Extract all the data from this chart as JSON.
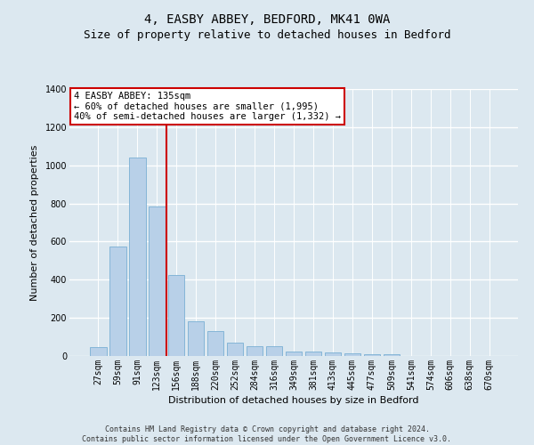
{
  "title": "4, EASBY ABBEY, BEDFORD, MK41 0WA",
  "subtitle": "Size of property relative to detached houses in Bedford",
  "xlabel": "Distribution of detached houses by size in Bedford",
  "ylabel": "Number of detached properties",
  "footer1": "Contains HM Land Registry data © Crown copyright and database right 2024.",
  "footer2": "Contains public sector information licensed under the Open Government Licence v3.0.",
  "categories": [
    "27sqm",
    "59sqm",
    "91sqm",
    "123sqm",
    "156sqm",
    "188sqm",
    "220sqm",
    "252sqm",
    "284sqm",
    "316sqm",
    "349sqm",
    "381sqm",
    "413sqm",
    "445sqm",
    "477sqm",
    "509sqm",
    "541sqm",
    "574sqm",
    "606sqm",
    "638sqm",
    "670sqm"
  ],
  "values": [
    48,
    575,
    1040,
    785,
    425,
    180,
    130,
    70,
    52,
    52,
    25,
    22,
    20,
    15,
    10,
    8,
    0,
    0,
    0,
    0,
    0
  ],
  "bar_color": "#b8d0e8",
  "bar_edge_color": "#7aafd4",
  "vline_x": 3.5,
  "vline_color": "#cc0000",
  "annotation_line1": "4 EASBY ABBEY: 135sqm",
  "annotation_line2": "← 60% of detached houses are smaller (1,995)",
  "annotation_line3": "40% of semi-detached houses are larger (1,332) →",
  "annotation_box_color": "#ffffff",
  "annotation_border_color": "#cc0000",
  "ylim": [
    0,
    1400
  ],
  "yticks": [
    0,
    200,
    400,
    600,
    800,
    1000,
    1200,
    1400
  ],
  "bg_color": "#dce8f0",
  "grid_color": "#ffffff",
  "title_fontsize": 10,
  "subtitle_fontsize": 9,
  "axis_label_fontsize": 8,
  "tick_fontsize": 7,
  "footer_fontsize": 6,
  "annotation_fontsize": 7.5
}
